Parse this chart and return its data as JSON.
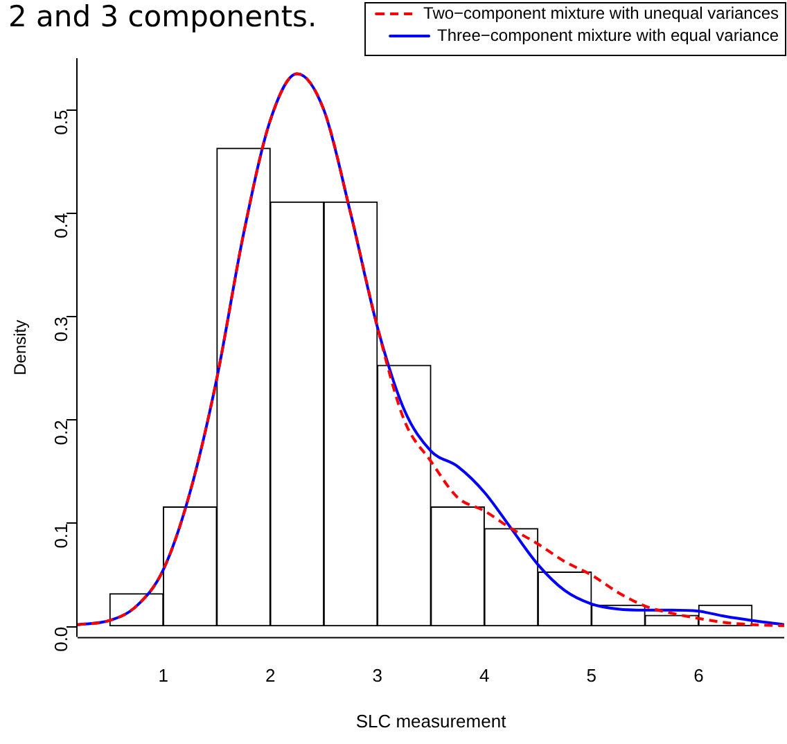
{
  "chart_data": {
    "type": "histogram",
    "title": "2 and 3 components.",
    "xlabel": "SLC measurement",
    "ylabel": "Density",
    "bins": [
      0.5,
      1,
      1.5,
      2,
      2.5,
      3,
      3.5,
      4,
      4.5,
      5,
      5.5,
      6,
      6.5
    ],
    "values": [
      0.032,
      0.116,
      0.463,
      0.411,
      0.411,
      0.253,
      0.116,
      0.095,
      0.053,
      0.021,
      0.011,
      0.021
    ],
    "color": "#ffffff",
    "series": [
      {
        "type": "line",
        "name": "Two−component mixture with unequal variances",
        "color": "#ff0000",
        "line_style": "dashed",
        "x": [
          0.2,
          0.5,
          0.75,
          1,
          1.25,
          1.5,
          1.75,
          2,
          2.25,
          2.5,
          2.75,
          3,
          3.25,
          3.5,
          3.75,
          4,
          4.25,
          4.5,
          4.75,
          5,
          5.25,
          5.5,
          5.75,
          6,
          6.25,
          6.5,
          6.8
        ],
        "values": [
          0.002,
          0.006,
          0.02,
          0.055,
          0.13,
          0.24,
          0.38,
          0.49,
          0.535,
          0.5,
          0.4,
          0.29,
          0.2,
          0.16,
          0.125,
          0.112,
          0.095,
          0.08,
          0.063,
          0.05,
          0.033,
          0.02,
          0.013,
          0.008,
          0.004,
          0.002,
          0.001
        ]
      },
      {
        "type": "line",
        "name": "Three−component mixture with equal variance",
        "color": "#0000ff",
        "line_style": "solid",
        "x": [
          0.2,
          0.5,
          0.75,
          1,
          1.25,
          1.5,
          1.75,
          2,
          2.25,
          2.5,
          2.75,
          3,
          3.25,
          3.5,
          3.75,
          4,
          4.25,
          4.5,
          4.75,
          5,
          5.25,
          5.5,
          5.75,
          6,
          6.25,
          6.5,
          6.8
        ],
        "values": [
          0.002,
          0.006,
          0.02,
          0.055,
          0.13,
          0.24,
          0.38,
          0.49,
          0.535,
          0.5,
          0.4,
          0.29,
          0.21,
          0.17,
          0.155,
          0.13,
          0.095,
          0.06,
          0.035,
          0.022,
          0.017,
          0.016,
          0.016,
          0.015,
          0.01,
          0.006,
          0.002
        ]
      }
    ],
    "xlim": [
      0.2,
      6.8
    ],
    "xticks": [
      1,
      2,
      3,
      4,
      5,
      6
    ],
    "ylim": [
      -0.01,
      0.55
    ],
    "yticks": [
      {
        "value": 0,
        "label": "0.0"
      },
      0.1,
      0.2,
      0.3,
      0.4,
      0.5
    ],
    "legend": "top right",
    "marker": "none"
  }
}
